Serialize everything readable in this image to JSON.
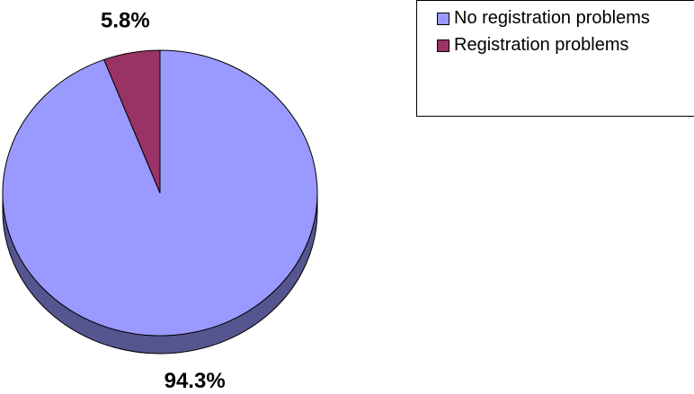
{
  "chart_data": {
    "type": "pie",
    "series": [
      {
        "name": "No registration problems",
        "color": "#9999ff",
        "values": [
          94.3
        ],
        "value_labels": [
          "94.3%"
        ]
      },
      {
        "name": "Registration problems",
        "color": "#993366",
        "values": [
          5.8
        ],
        "value_labels": [
          "5.8%"
        ]
      }
    ],
    "legend": "top-right"
  }
}
